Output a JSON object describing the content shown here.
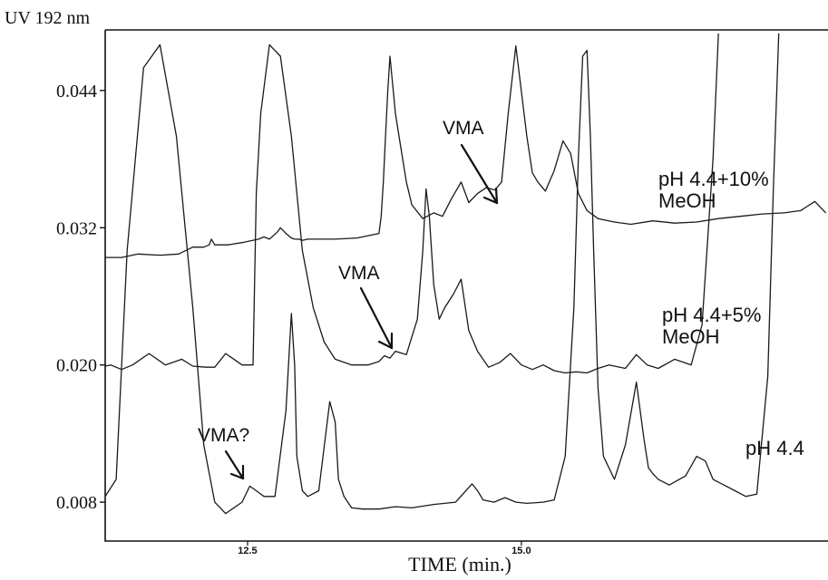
{
  "chart_data": {
    "type": "line",
    "ylabel": "UV 192 nm",
    "xlabel": "TIME (min.)",
    "xlim": [
      11.2,
      17.8
    ],
    "ylim": [
      0.0046,
      0.0493
    ],
    "x_ticks": [
      {
        "value": 12.5,
        "label": "12.5"
      },
      {
        "value": 15.0,
        "label": "15.0"
      }
    ],
    "y_ticks": [
      {
        "value": 0.008,
        "label": "0.008"
      },
      {
        "value": 0.02,
        "label": "0.020"
      },
      {
        "value": 0.032,
        "label": "0.032"
      },
      {
        "value": 0.044,
        "label": "0.044"
      }
    ],
    "series": [
      {
        "name": "pH 4.4+10% MeOH",
        "label_lines": [
          "pH 4.4+10%",
          "MeOH"
        ],
        "x": [
          11.2,
          11.35,
          11.5,
          11.7,
          11.87,
          12.0,
          12.1,
          12.15,
          12.17,
          12.2,
          12.32,
          12.45,
          12.6,
          12.65,
          12.7,
          12.77,
          12.8,
          12.85,
          12.9,
          12.93,
          12.97,
          13.0,
          13.05,
          13.1,
          13.15,
          13.3,
          13.5,
          13.7,
          13.72,
          13.74,
          13.76,
          13.78,
          13.8,
          13.85,
          13.9,
          13.95,
          14.0,
          14.1,
          14.2,
          14.28,
          14.36,
          14.45,
          14.52,
          14.6,
          14.68,
          14.76,
          14.82,
          14.88,
          14.95,
          15.05,
          15.1,
          15.15,
          15.22,
          15.3,
          15.38,
          15.45,
          15.52,
          15.6,
          15.7,
          15.85,
          16.0,
          16.2,
          16.4,
          16.6,
          16.8,
          17.0,
          17.2,
          17.4,
          17.55,
          17.68,
          17.78
        ],
        "y": [
          0.0294,
          0.0294,
          0.0297,
          0.0296,
          0.0297,
          0.0303,
          0.0303,
          0.0305,
          0.031,
          0.0305,
          0.0305,
          0.0307,
          0.031,
          0.0312,
          0.031,
          0.0316,
          0.032,
          0.0315,
          0.0311,
          0.031,
          0.031,
          0.0309,
          0.031,
          0.031,
          0.031,
          0.031,
          0.0311,
          0.0315,
          0.033,
          0.036,
          0.04,
          0.044,
          0.047,
          0.042,
          0.039,
          0.036,
          0.034,
          0.0328,
          0.0333,
          0.033,
          0.0345,
          0.036,
          0.0342,
          0.035,
          0.0355,
          0.0353,
          0.036,
          0.042,
          0.0479,
          0.04,
          0.0368,
          0.036,
          0.0352,
          0.037,
          0.0396,
          0.0385,
          0.035,
          0.0335,
          0.0328,
          0.0325,
          0.0323,
          0.0326,
          0.0324,
          0.0325,
          0.0328,
          0.033,
          0.0332,
          0.0333,
          0.0335,
          0.0343,
          0.0333
        ]
      },
      {
        "name": "pH 4.4+5% MeOH",
        "label_lines": [
          "pH 4.4+5%",
          "MeOH"
        ],
        "x": [
          11.2,
          11.25,
          11.35,
          11.45,
          11.6,
          11.75,
          11.9,
          12.0,
          12.12,
          12.2,
          12.3,
          12.45,
          12.55,
          12.58,
          12.62,
          12.7,
          12.8,
          12.9,
          13.0,
          13.1,
          13.2,
          13.3,
          13.45,
          13.6,
          13.7,
          13.75,
          13.8,
          13.85,
          13.95,
          14.05,
          14.1,
          14.13,
          14.16,
          14.2,
          14.25,
          14.3,
          14.38,
          14.45,
          14.52,
          14.6,
          14.7,
          14.8,
          14.9,
          15.0,
          15.1,
          15.2,
          15.3,
          15.4,
          15.5,
          15.6,
          15.7,
          15.8,
          15.95,
          16.05,
          16.15,
          16.25,
          16.4,
          16.55,
          16.65,
          16.75,
          16.8
        ],
        "y": [
          0.0199,
          0.02,
          0.0196,
          0.02,
          0.021,
          0.02,
          0.0205,
          0.0199,
          0.0198,
          0.0198,
          0.021,
          0.02,
          0.02,
          0.035,
          0.042,
          0.048,
          0.047,
          0.04,
          0.03,
          0.025,
          0.022,
          0.0205,
          0.02,
          0.02,
          0.0203,
          0.0208,
          0.0206,
          0.0212,
          0.0209,
          0.024,
          0.03,
          0.0354,
          0.033,
          0.027,
          0.024,
          0.025,
          0.0262,
          0.0275,
          0.023,
          0.0212,
          0.0198,
          0.0202,
          0.021,
          0.02,
          0.0196,
          0.02,
          0.0195,
          0.0193,
          0.0194,
          0.0193,
          0.0197,
          0.02,
          0.0197,
          0.0209,
          0.02,
          0.0197,
          0.0205,
          0.02,
          0.0235,
          0.038,
          0.049
        ]
      },
      {
        "name": "pH 4.4",
        "label_lines": [
          "pH 4.4"
        ],
        "x": [
          11.2,
          11.3,
          11.4,
          11.55,
          11.7,
          11.85,
          12.0,
          12.1,
          12.2,
          12.3,
          12.45,
          12.52,
          12.58,
          12.65,
          12.75,
          12.85,
          12.9,
          12.93,
          12.95,
          13.0,
          13.05,
          13.15,
          13.25,
          13.3,
          13.33,
          13.38,
          13.45,
          13.55,
          13.7,
          13.85,
          14.0,
          14.2,
          14.4,
          14.55,
          14.6,
          14.65,
          14.75,
          14.85,
          14.95,
          15.05,
          15.2,
          15.3,
          15.4,
          15.48,
          15.52,
          15.56,
          15.6,
          15.63,
          15.66,
          15.7,
          15.75,
          15.85,
          15.95,
          16.05,
          16.12,
          16.16,
          16.2,
          16.25,
          16.35,
          16.5,
          16.6,
          16.68,
          16.75,
          16.85,
          16.95,
          17.05,
          17.15,
          17.25,
          17.3,
          17.35
        ],
        "y": [
          0.0085,
          0.01,
          0.03,
          0.046,
          0.048,
          0.04,
          0.025,
          0.013,
          0.008,
          0.007,
          0.008,
          0.0094,
          0.009,
          0.0085,
          0.0085,
          0.016,
          0.0245,
          0.02,
          0.012,
          0.009,
          0.0085,
          0.009,
          0.0168,
          0.015,
          0.01,
          0.0085,
          0.0075,
          0.0074,
          0.0074,
          0.0076,
          0.0075,
          0.0078,
          0.008,
          0.0096,
          0.009,
          0.0082,
          0.008,
          0.0084,
          0.008,
          0.0079,
          0.008,
          0.0082,
          0.012,
          0.025,
          0.038,
          0.047,
          0.0475,
          0.04,
          0.03,
          0.018,
          0.012,
          0.01,
          0.013,
          0.0185,
          0.0135,
          0.011,
          0.0105,
          0.01,
          0.0095,
          0.0103,
          0.012,
          0.0116,
          0.01,
          0.0095,
          0.009,
          0.0085,
          0.0087,
          0.019,
          0.035,
          0.049
        ]
      }
    ],
    "annotations": [
      {
        "text": "VMA",
        "series": "pH 4.4+10% MeOH"
      },
      {
        "text": "VMA",
        "series": "pH 4.4+5% MeOH"
      },
      {
        "text": "VMA?",
        "series": "pH 4.4"
      }
    ]
  }
}
